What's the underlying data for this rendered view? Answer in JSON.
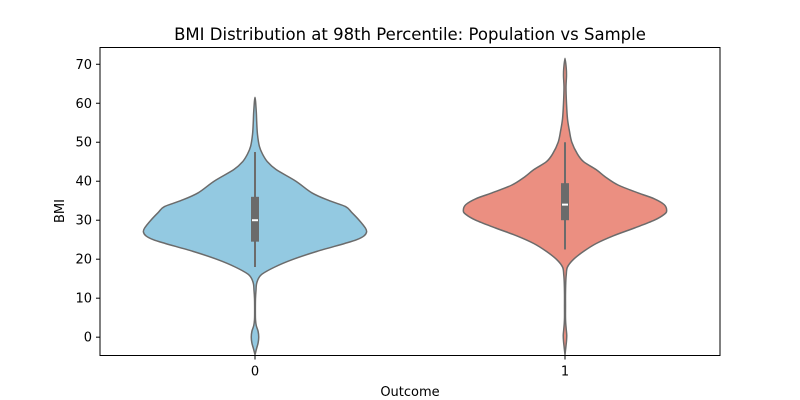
{
  "chart_data": {
    "type": "violin",
    "title": "BMI Distribution at 98th Percentile: Population vs Sample",
    "xlabel": "Outcome",
    "ylabel": "BMI",
    "categories": [
      "0",
      "1"
    ],
    "ylim": [
      -4.7,
      74.3
    ],
    "yticks": [
      0,
      10,
      20,
      30,
      40,
      50,
      60,
      70
    ],
    "colors": {
      "0": "#93c9e1",
      "1": "#eb8f81",
      "outline": "#6b6b6b",
      "box": "#6b6b6b",
      "median": "#ffffff"
    },
    "violins": [
      {
        "category": "0",
        "box": {
          "q1": 24.5,
          "median": 30.0,
          "q3": 36.0,
          "whisker_low": 18.0,
          "whisker_high": 47.5
        },
        "profile": [
          [
            -4.5,
            0.0
          ],
          [
            -3.0,
            0.012
          ],
          [
            -1.5,
            0.025
          ],
          [
            0.0,
            0.03
          ],
          [
            1.5,
            0.025
          ],
          [
            3.0,
            0.01
          ],
          [
            4.5,
            0.004
          ],
          [
            6.0,
            0.003
          ],
          [
            8.0,
            0.003
          ],
          [
            10.0,
            0.004
          ],
          [
            12.0,
            0.008
          ],
          [
            14.0,
            0.015
          ],
          [
            16.0,
            0.05
          ],
          [
            18.0,
            0.16
          ],
          [
            20.0,
            0.31
          ],
          [
            22.0,
            0.5
          ],
          [
            24.0,
            0.72
          ],
          [
            25.0,
            0.82
          ],
          [
            26.0,
            0.88
          ],
          [
            27.0,
            0.9
          ],
          [
            28.0,
            0.89
          ],
          [
            30.0,
            0.84
          ],
          [
            32.0,
            0.78
          ],
          [
            33.5,
            0.73
          ],
          [
            35.0,
            0.6
          ],
          [
            37.0,
            0.46
          ],
          [
            40.0,
            0.33
          ],
          [
            43.0,
            0.17
          ],
          [
            45.0,
            0.1
          ],
          [
            47.0,
            0.06
          ],
          [
            49.0,
            0.035
          ],
          [
            52.0,
            0.02
          ],
          [
            55.0,
            0.014
          ],
          [
            58.0,
            0.01
          ],
          [
            61.5,
            0.0
          ]
        ]
      },
      {
        "category": "1",
        "box": {
          "q1": 30.0,
          "median": 34.0,
          "q3": 39.5,
          "whisker_low": 22.5,
          "whisker_high": 50.0
        },
        "profile": [
          [
            -4.5,
            0.0
          ],
          [
            -2.5,
            0.007
          ],
          [
            -1.0,
            0.012
          ],
          [
            0.5,
            0.014
          ],
          [
            2.0,
            0.01
          ],
          [
            3.5,
            0.006
          ],
          [
            5.0,
            0.004
          ],
          [
            8.0,
            0.004
          ],
          [
            11.0,
            0.004
          ],
          [
            14.0,
            0.006
          ],
          [
            16.0,
            0.01
          ],
          [
            18.0,
            0.02
          ],
          [
            20.0,
            0.07
          ],
          [
            22.0,
            0.15
          ],
          [
            24.0,
            0.25
          ],
          [
            26.0,
            0.39
          ],
          [
            28.0,
            0.56
          ],
          [
            30.0,
            0.72
          ],
          [
            31.5,
            0.8
          ],
          [
            32.5,
            0.82
          ],
          [
            34.0,
            0.8
          ],
          [
            35.5,
            0.72
          ],
          [
            37.0,
            0.59
          ],
          [
            39.0,
            0.43
          ],
          [
            41.0,
            0.33
          ],
          [
            43.0,
            0.25
          ],
          [
            45.0,
            0.15
          ],
          [
            47.0,
            0.1
          ],
          [
            50.0,
            0.055
          ],
          [
            53.0,
            0.035
          ],
          [
            56.0,
            0.02
          ],
          [
            60.0,
            0.012
          ],
          [
            64.0,
            0.008
          ],
          [
            67.0,
            0.012
          ],
          [
            69.0,
            0.01
          ],
          [
            71.5,
            0.0
          ]
        ]
      }
    ]
  }
}
